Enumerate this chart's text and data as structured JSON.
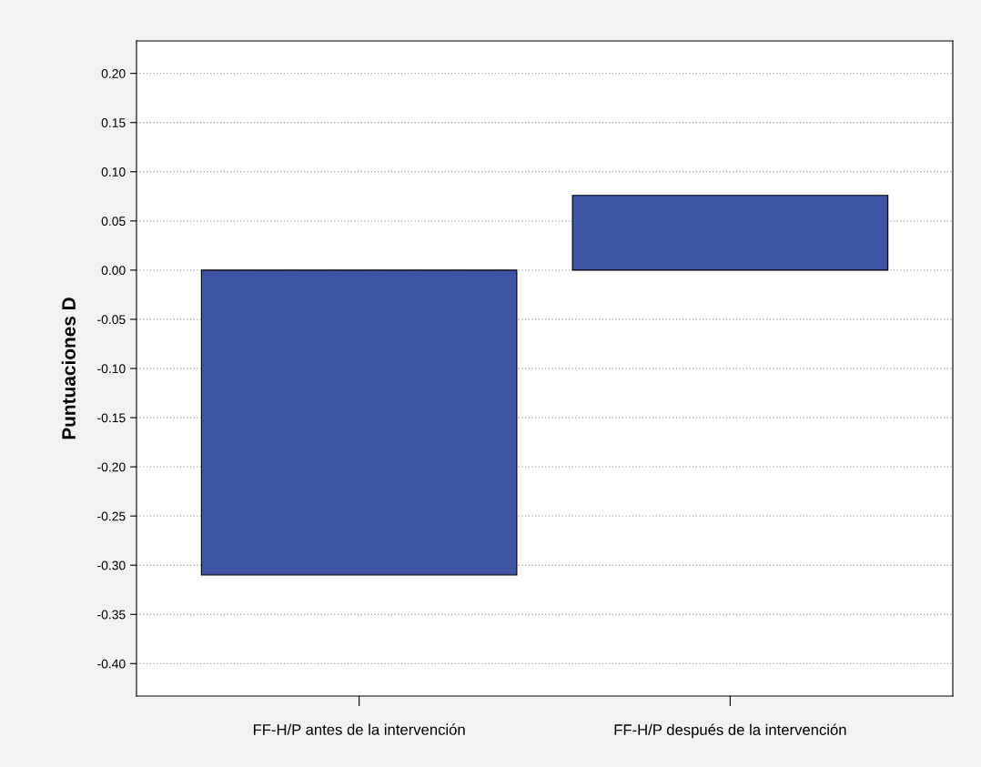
{
  "chart_data": {
    "type": "bar",
    "ylabel": "Puntuaciones D",
    "categories": [
      "FF-H/P antes de la intervención",
      "FF-H/P después de la intervención"
    ],
    "values": [
      -0.31,
      0.076
    ],
    "color": "#3f54a3",
    "ylim": [
      -0.433,
      0.233
    ],
    "yticks": [
      {
        "value": -0.4,
        "label": "-0.40"
      },
      {
        "value": -0.35,
        "label": "-0.35"
      },
      {
        "value": -0.3,
        "label": "-0.30"
      },
      {
        "value": -0.25,
        "label": "-0.25"
      },
      {
        "value": -0.2,
        "label": "-0.20"
      },
      {
        "value": -0.15,
        "label": "-0.15"
      },
      {
        "value": -0.1,
        "label": "-0.10"
      },
      {
        "value": -0.05,
        "label": "-0.05"
      },
      {
        "value": 0,
        "label": "0.00"
      },
      {
        "value": 0.05,
        "label": "0.05"
      },
      {
        "value": 0.1,
        "label": "0.10"
      },
      {
        "value": 0.15,
        "label": "0.15"
      },
      {
        "value": 0.2,
        "label": "0.20"
      }
    ],
    "grid": "y",
    "line_style": "dotted"
  }
}
